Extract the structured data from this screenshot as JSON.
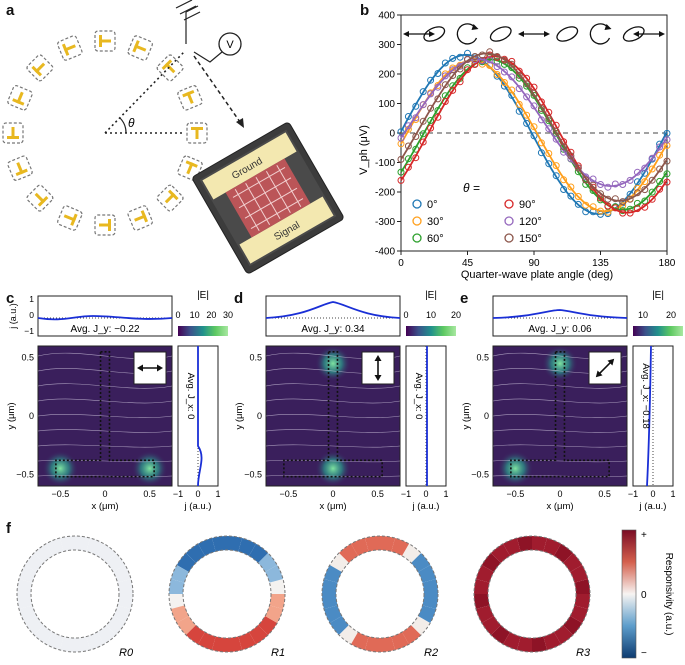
{
  "panels": {
    "a": "a",
    "b": "b",
    "c": "c",
    "d": "d",
    "e": "e",
    "f": "f"
  },
  "panel_a": {
    "angle_symbol": "θ",
    "voltmeter": "V",
    "inset_ground": "Ground",
    "inset_signal": "Signal",
    "num_devices": 16,
    "colors": {
      "contact": "#e8b820",
      "box": "#777777"
    }
  },
  "panel_b": {
    "theta_label": "θ =",
    "chart_data": {
      "type": "line",
      "xlabel": "Quarter-wave plate angle (deg)",
      "ylabel": "V_ph (μV)",
      "xlim": [
        0,
        180
      ],
      "ylim": [
        -400,
        400
      ],
      "xticks": [
        0,
        45,
        90,
        135,
        180
      ],
      "yticks": [
        -400,
        -300,
        -200,
        -100,
        0,
        100,
        200,
        300,
        400
      ],
      "legend_placement": "bottom-left",
      "series": [
        {
          "name": "0°",
          "color": "#1f77b4",
          "offset": -5,
          "amp": 270,
          "phase": 44
        },
        {
          "name": "30°",
          "color": "#ff9f1c",
          "offset": -10,
          "amp": 255,
          "phase": 48
        },
        {
          "name": "60°",
          "color": "#2ca02c",
          "offset": -5,
          "amp": 255,
          "phase": 60
        },
        {
          "name": "90°",
          "color": "#d62728",
          "offset": -5,
          "amp": 265,
          "phase": 63
        },
        {
          "name": "120°",
          "color": "#9467bd",
          "offset": 35,
          "amp": 215,
          "phase": 52
        },
        {
          "name": "150°",
          "color": "#8c564b",
          "offset": 20,
          "amp": 250,
          "phase": 58
        }
      ]
    }
  },
  "panel_c": {
    "j_label": "j (a.u.)",
    "avg_label": "Avg. J_y: −0.22",
    "side_avg": "Avg. J_x: 0",
    "colorbar_title": "|E|",
    "colorbar_ticks": [
      "0",
      "10",
      "20",
      "30"
    ],
    "xlabel": "x (μm)",
    "ylabel": "y (μm)",
    "xticks": [
      "−0.5",
      "0",
      "0.5"
    ],
    "yticks": [
      "0.5",
      "0",
      "−0.5"
    ],
    "side_ticks": [
      "−1",
      "0",
      "1"
    ],
    "side_xlabel": "j (a.u.)",
    "top_yticks": [
      "1",
      "0",
      "−1"
    ]
  },
  "panel_d": {
    "avg_label": "Avg. J_y: 0.34",
    "side_avg": "Avg. J_x: 0",
    "colorbar_title": "|E|",
    "colorbar_ticks": [
      "0",
      "10",
      "20"
    ]
  },
  "panel_e": {
    "avg_label": "Avg. J_y: 0.06",
    "side_avg": "Avg. J_x: −0.18",
    "colorbar_title": "|E|",
    "colorbar_ticks": [
      "10",
      "20"
    ]
  },
  "panel_f": {
    "rings": [
      "R0",
      "R1",
      "R2",
      "R3"
    ],
    "colorbar_title": "Responsivity (a.u.)",
    "colorbar_ticks": [
      "+",
      "0",
      "−"
    ]
  }
}
